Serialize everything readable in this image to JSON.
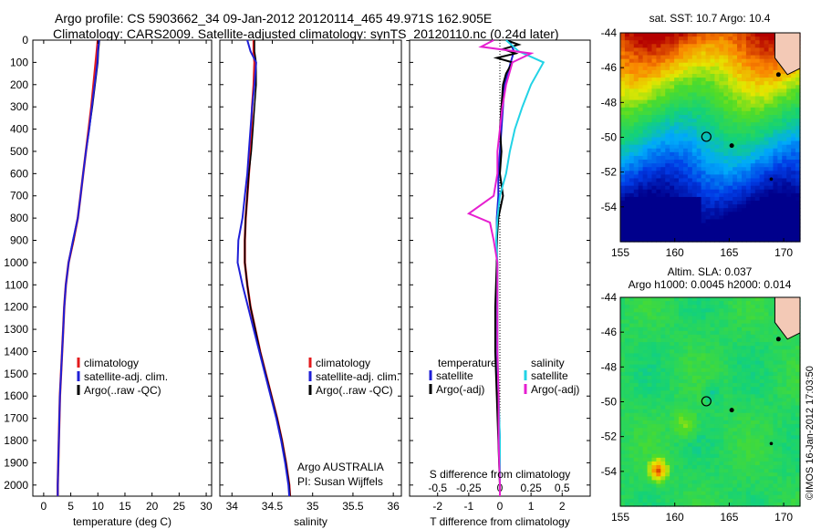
{
  "header": {
    "line1": "Argo profile: CS 5903662_34 09-Jan-2012 20120114_465 49.971S 162.905E",
    "line2": "Climatology: CARS2009. Satellite-adjusted climatology: synTS_20120110.nc (0.24d later)"
  },
  "colors": {
    "clim": "#e31a1c",
    "sat": "#1f1fd6",
    "argo": "#000000",
    "sat_s": "#22d3e6",
    "argo_s": "#e61fd0"
  },
  "depth_ticks": [
    "0",
    "100",
    "200",
    "300",
    "400",
    "500",
    "600",
    "700",
    "800",
    "900",
    "1000",
    "1100",
    "1200",
    "1300",
    "1400",
    "1500",
    "1600",
    "1700",
    "1800",
    "1900",
    "2000"
  ],
  "chart_data": [
    {
      "type": "line",
      "id": "temperature",
      "xlabel": "temperature (deg C)",
      "ylabel": "",
      "xlim": [
        -2,
        31
      ],
      "ylim": [
        2050,
        0
      ],
      "xticks": [
        "0",
        "5",
        "10",
        "15",
        "20",
        "25",
        "30"
      ],
      "legend": [
        "climatology",
        "satellite-adj. clim.",
        "Argo(..raw -QC)"
      ],
      "series": [
        {
          "name": "climatology",
          "depth": [
            0,
            50,
            100,
            200,
            300,
            400,
            500,
            600,
            700,
            800,
            900,
            1000,
            1100,
            1200,
            1300,
            1400,
            1500,
            1600,
            1700,
            1800,
            1900,
            2000,
            2050
          ],
          "values": [
            10.0,
            9.8,
            9.6,
            9.2,
            8.8,
            8.3,
            7.8,
            7.3,
            6.8,
            6.3,
            5.5,
            4.6,
            4.1,
            3.8,
            3.6,
            3.4,
            3.2,
            3.0,
            2.9,
            2.8,
            2.7,
            2.6,
            2.6
          ]
        },
        {
          "name": "satellite-adj. clim.",
          "depth": [
            0,
            50,
            100,
            200,
            300,
            400,
            500,
            600,
            700,
            800,
            900,
            1000,
            1100,
            1200,
            1300,
            1400,
            1500,
            1600,
            1700,
            1800,
            1900,
            2000,
            2050
          ],
          "values": [
            10.3,
            10.1,
            10.0,
            9.5,
            9.0,
            8.4,
            7.8,
            7.3,
            6.8,
            6.3,
            5.5,
            4.6,
            4.1,
            3.8,
            3.6,
            3.4,
            3.2,
            3.0,
            2.9,
            2.8,
            2.7,
            2.6,
            2.6
          ]
        },
        {
          "name": "Argo(..raw -QC)",
          "depth": [
            0,
            50,
            100,
            200,
            300,
            400,
            500,
            600,
            700,
            800,
            900,
            1000,
            1100,
            1200,
            1300,
            1400,
            1500,
            1600,
            1700,
            1800,
            1900,
            2000,
            2050
          ],
          "values": [
            10.2,
            10.0,
            9.9,
            9.4,
            8.9,
            8.4,
            7.8,
            7.3,
            6.8,
            6.3,
            5.4,
            4.6,
            4.1,
            3.8,
            3.6,
            3.4,
            3.2,
            3.0,
            2.9,
            2.8,
            2.7,
            2.6,
            2.6
          ]
        }
      ]
    },
    {
      "type": "line",
      "id": "salinity",
      "xlabel": "salinity",
      "ylabel": "",
      "xlim": [
        33.85,
        36.1
      ],
      "ylim": [
        2050,
        0
      ],
      "xticks": [
        "34",
        "34.5",
        "35",
        "35.5",
        "36"
      ],
      "legend": [
        "climatology",
        "satellite-adj. clim.",
        "Argo(..raw -QC)"
      ],
      "annotation": [
        "Argo AUSTRALIA",
        "PI: Susan Wijffels"
      ],
      "series": [
        {
          "name": "climatology",
          "depth": [
            0,
            50,
            100,
            200,
            300,
            400,
            500,
            600,
            700,
            800,
            900,
            1000,
            1100,
            1200,
            1300,
            1400,
            1500,
            1600,
            1700,
            1800,
            1900,
            2000,
            2050
          ],
          "values": [
            34.27,
            34.27,
            34.28,
            34.27,
            34.25,
            34.24,
            34.23,
            34.21,
            34.19,
            34.17,
            34.16,
            34.16,
            34.19,
            34.23,
            34.29,
            34.35,
            34.42,
            34.49,
            34.56,
            34.62,
            34.67,
            34.71,
            34.72
          ]
        },
        {
          "name": "satellite-adj. clim.",
          "depth": [
            0,
            50,
            100,
            200,
            300,
            400,
            500,
            600,
            700,
            800,
            900,
            1000,
            1100,
            1200,
            1300,
            1400,
            1500,
            1600,
            1700,
            1800,
            1900,
            2000,
            2050
          ],
          "values": [
            34.28,
            34.28,
            34.3,
            34.3,
            34.28,
            34.26,
            34.24,
            34.21,
            34.19,
            34.17,
            34.16,
            34.16,
            34.19,
            34.23,
            34.29,
            34.35,
            34.42,
            34.49,
            34.56,
            34.62,
            34.67,
            34.71,
            34.72
          ]
        },
        {
          "name": "Argo(..raw -QC)",
          "depth": [
            0,
            50,
            100,
            200,
            300,
            400,
            500,
            600,
            700,
            800,
            900,
            1000,
            1100,
            1200,
            1300,
            1400,
            1500,
            1600,
            1700,
            1800,
            1900,
            2000,
            2050
          ],
          "values": [
            34.19,
            34.23,
            34.3,
            34.28,
            34.25,
            34.23,
            34.21,
            34.19,
            34.16,
            34.13,
            34.08,
            34.07,
            34.13,
            34.2,
            34.27,
            34.34,
            34.41,
            34.48,
            34.55,
            34.61,
            34.66,
            34.7,
            34.71
          ]
        }
      ]
    },
    {
      "type": "line",
      "id": "differences",
      "xlabel": "T difference from climatology",
      "xlabel2": "S difference from climatology",
      "xlim": [
        -2.9,
        2.9
      ],
      "ylim": [
        2050,
        0
      ],
      "xticks": [
        "-2",
        "-1",
        "0",
        "1",
        "2"
      ],
      "xticks2": [
        "-0.5",
        "-0.25",
        "0",
        "0.25",
        "0.5"
      ],
      "legend_titles": [
        "temperature",
        "salinity"
      ],
      "legend": [
        "satellite",
        "Argo(-adj)",
        "satellite",
        "Argo(-adj)"
      ],
      "series": [
        {
          "name": "T satellite",
          "depth": [
            0,
            50,
            100,
            200,
            300,
            400,
            500,
            600,
            700,
            800,
            900,
            1000,
            1200,
            1400,
            1600,
            1800,
            2000,
            2050
          ],
          "values": [
            0.3,
            0.45,
            0.35,
            0.15,
            0.1,
            0.05,
            0.0,
            -0.05,
            -0.05,
            -0.1,
            -0.1,
            -0.1,
            -0.1,
            -0.1,
            -0.05,
            0.0,
            0.0,
            0.0
          ]
        },
        {
          "name": "T Argo(-adj)",
          "depth": [
            0,
            20,
            40,
            60,
            80,
            100,
            150,
            200,
            300,
            400,
            500,
            600,
            700,
            800,
            900,
            1000,
            1200,
            1400,
            1600,
            1800,
            2000,
            2050
          ],
          "values": [
            0.2,
            0.6,
            0.1,
            0.5,
            -0.1,
            0.4,
            0.2,
            0.1,
            0.05,
            0.0,
            0.05,
            0.0,
            0.1,
            -0.05,
            -0.1,
            -0.1,
            -0.15,
            -0.15,
            -0.1,
            -0.05,
            0.0,
            0.0
          ]
        },
        {
          "name": "S satellite",
          "depth": [
            0,
            50,
            100,
            200,
            300,
            400,
            500,
            600,
            700,
            800,
            900,
            1000,
            1200,
            1400,
            1600,
            1800,
            2000,
            2050
          ],
          "values": [
            0.05,
            0.15,
            0.35,
            0.25,
            0.18,
            0.12,
            0.08,
            0.05,
            0.0,
            -0.02,
            -0.03,
            -0.02,
            -0.02,
            -0.02,
            -0.01,
            0.0,
            0.0,
            0.0
          ]
        },
        {
          "name": "S Argo(-adj)",
          "depth": [
            0,
            30,
            60,
            100,
            200,
            300,
            400,
            500,
            600,
            700,
            780,
            820,
            900,
            1000,
            1200,
            1400,
            1600,
            1800,
            2000,
            2050
          ],
          "values": [
            -0.05,
            -0.15,
            0.25,
            0.1,
            0.05,
            0.02,
            0.0,
            -0.02,
            -0.02,
            -0.05,
            -0.25,
            -0.08,
            -0.05,
            -0.02,
            -0.02,
            -0.02,
            -0.01,
            -0.01,
            0.0,
            0.0
          ]
        }
      ]
    },
    {
      "type": "heatmap",
      "id": "sst_map",
      "title": "sat. SST: 10.7  Argo: 10.4",
      "xticks": [
        "155",
        "160",
        "165",
        "170"
      ],
      "yticks": [
        "-44",
        "-46",
        "-48",
        "-50",
        "-52",
        "-54"
      ],
      "xlim": [
        155,
        171.5
      ],
      "ylim": [
        -56,
        -44
      ],
      "marker": [
        162.9,
        -49.97
      ]
    },
    {
      "type": "heatmap",
      "id": "sla_map",
      "title": "Altim. SLA: 0.037",
      "subtitle": "Argo h1000: 0.0045  h2000: 0.014",
      "xticks": [
        "155",
        "160",
        "165",
        "170"
      ],
      "yticks": [
        "-44",
        "-46",
        "-48",
        "-50",
        "-52",
        "-54"
      ],
      "xlim": [
        155,
        171.5
      ],
      "ylim": [
        -56,
        -44
      ],
      "marker": [
        162.9,
        -49.97
      ]
    }
  ],
  "watermark": "©IMOS 16-Jan-2012 17:03:50"
}
